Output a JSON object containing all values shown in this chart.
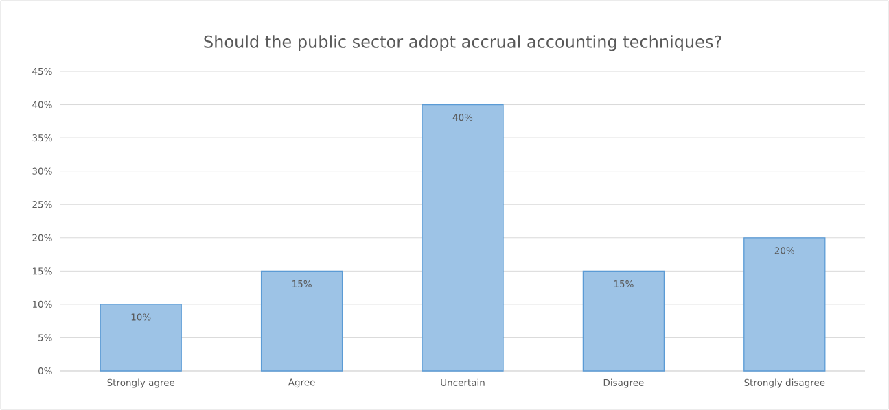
{
  "chart_data": {
    "type": "bar",
    "title": "Should the public sector adopt accrual accounting techniques?",
    "categories": [
      "Strongly agree",
      "Agree",
      "Uncertain",
      "Disagree",
      "Strongly disagree"
    ],
    "values": [
      10,
      15,
      40,
      15,
      20
    ],
    "value_labels": [
      "10%",
      "15%",
      "40%",
      "15%",
      "20%"
    ],
    "color": "#9dc3e6",
    "ylim": [
      0,
      45
    ],
    "yticks": [
      {
        "value": 0,
        "label": "0%"
      },
      {
        "value": 5,
        "label": "5%"
      },
      {
        "value": 10,
        "label": "10%"
      },
      {
        "value": 15,
        "label": "15%"
      },
      {
        "value": 20,
        "label": "20%"
      },
      {
        "value": 25,
        "label": "25%"
      },
      {
        "value": 30,
        "label": "30%"
      },
      {
        "value": 35,
        "label": "35%"
      },
      {
        "value": 40,
        "label": "40%"
      },
      {
        "value": 45,
        "label": "45%"
      }
    ],
    "grid": "y"
  }
}
